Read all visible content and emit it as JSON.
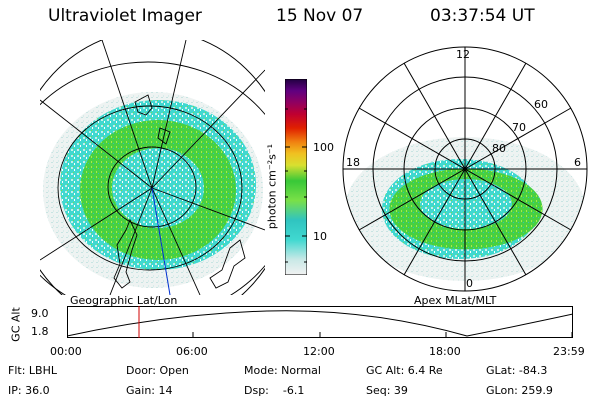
{
  "header": {
    "instrument": "Ultraviolet Imager",
    "date": "15 Nov 07",
    "time": "03:37:54 UT"
  },
  "colorbar": {
    "unit_label": "photon cm⁻²s⁻¹",
    "tick_labels": [
      "100",
      "10"
    ],
    "scale": "log",
    "colors": [
      "#e6e6e6",
      "#c8e8e6",
      "#40d8d0",
      "#28c4c0",
      "#7ae048",
      "#38c838",
      "#d8e030",
      "#f0c020",
      "#f08010",
      "#e02000",
      "#c00030",
      "#900060",
      "#600080",
      "#200040"
    ]
  },
  "left_panel": {
    "caption": "Geographic Lat/Lon"
  },
  "right_panel": {
    "caption": "Apex MLat/MLT",
    "mlt_labels": {
      "top": "12",
      "left": "18",
      "right": "6",
      "bottom": "0"
    },
    "lat_labels": [
      "60",
      "70",
      "80"
    ]
  },
  "altitude_plot": {
    "ylabel": "GC Alt",
    "yticks": [
      "9.0",
      "1.8"
    ],
    "xticks": [
      "00:00",
      "06:00",
      "12:00",
      "18:00",
      "23:59"
    ],
    "current_marker_time": "03:37:54"
  },
  "footer": {
    "row1": [
      {
        "key": "flt",
        "text": "Flt: LBHL"
      },
      {
        "key": "door",
        "text": "Door: Open"
      },
      {
        "key": "mode",
        "text": "Mode: Normal"
      },
      {
        "key": "gcalt",
        "text": "GC Alt: 6.4 Re"
      },
      {
        "key": "glat",
        "text": "GLat: -84.3"
      }
    ],
    "row2": [
      {
        "key": "ip",
        "text": "IP: 36.0"
      },
      {
        "key": "gain",
        "text": "Gain: 14"
      },
      {
        "key": "dsp",
        "text": "Dsp:    -6.1"
      },
      {
        "key": "seq",
        "text": "Seq: 39"
      },
      {
        "key": "glon",
        "text": "GLon: 259.9"
      }
    ]
  }
}
